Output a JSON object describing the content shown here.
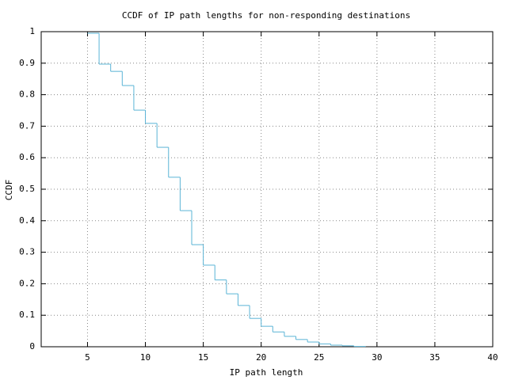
{
  "chart_data": {
    "type": "step",
    "title": "CCDF of IP path lengths for non-responding destinations",
    "x_label": "IP path length",
    "y_label": "CCDF",
    "x": [
      5,
      6,
      7,
      8,
      9,
      10,
      11,
      12,
      13,
      14,
      15,
      16,
      17,
      18,
      19,
      20,
      21,
      22,
      23,
      24,
      25,
      26,
      27,
      28,
      29
    ],
    "values": [
      0.995,
      0.897,
      0.874,
      0.829,
      0.751,
      0.709,
      0.633,
      0.538,
      0.432,
      0.324,
      0.259,
      0.212,
      0.168,
      0.131,
      0.09,
      0.065,
      0.047,
      0.033,
      0.023,
      0.015,
      0.009,
      0.005,
      0.003,
      0.001,
      0
    ],
    "color": "#5ab4d6",
    "xlim": [
      1,
      40
    ],
    "xticks": [
      5,
      10,
      15,
      20,
      25,
      30,
      35,
      40
    ],
    "ylim": [
      0,
      1
    ],
    "yticks": [
      0,
      0.1,
      0.2,
      0.3,
      0.4,
      0.5,
      0.6,
      0.7,
      0.8,
      0.9,
      1
    ],
    "grid": true
  }
}
